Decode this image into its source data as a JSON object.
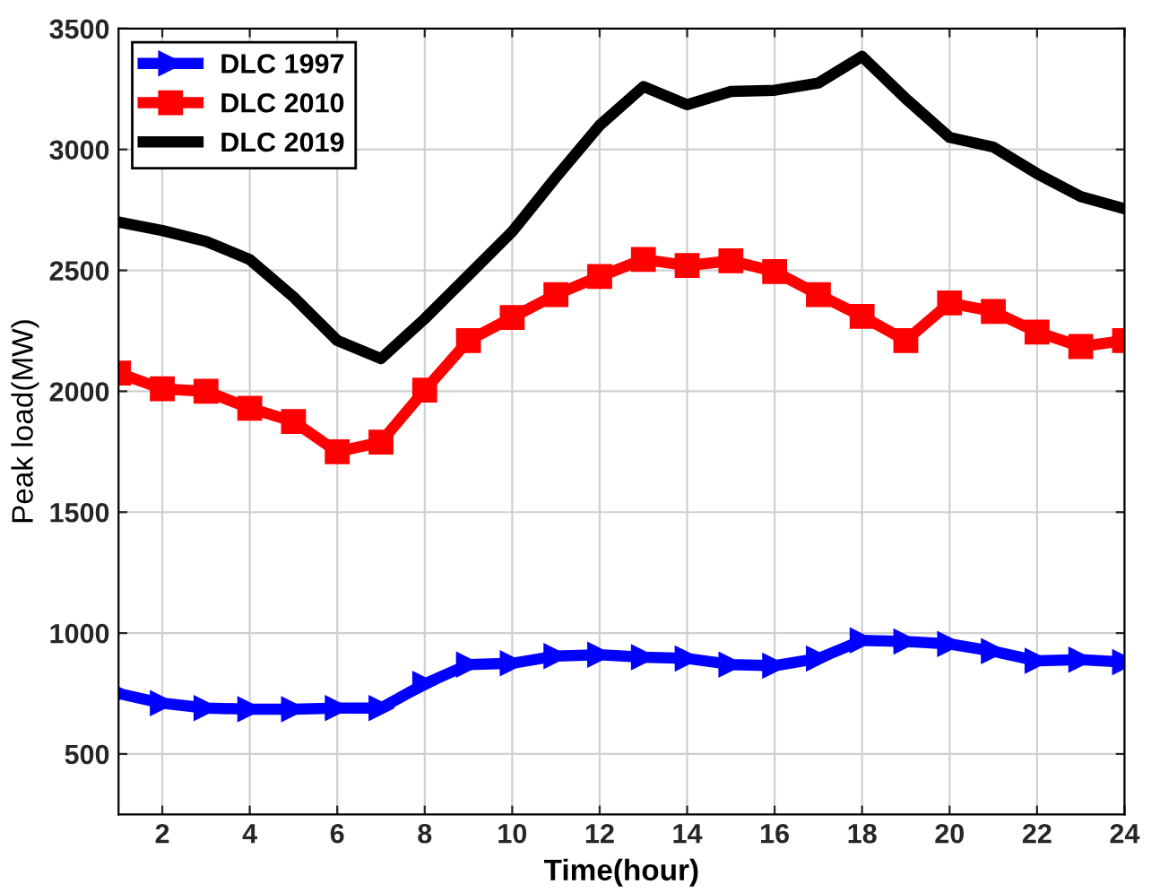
{
  "chart_data": {
    "type": "line",
    "xlabel": "Time(hour)",
    "ylabel": "Peak load(MW)",
    "x": [
      1,
      2,
      3,
      4,
      5,
      6,
      7,
      8,
      9,
      10,
      11,
      12,
      13,
      14,
      15,
      16,
      17,
      18,
      19,
      20,
      21,
      22,
      23,
      24
    ],
    "series": [
      {
        "name": "DLC 1997",
        "color": "#0000ff",
        "marker": "triangle",
        "values": [
          750,
          710,
          690,
          685,
          685,
          690,
          690,
          790,
          870,
          875,
          905,
          910,
          900,
          895,
          870,
          865,
          895,
          970,
          965,
          955,
          925,
          885,
          890,
          880
        ]
      },
      {
        "name": "DLC 2010",
        "color": "#ff0000",
        "marker": "square",
        "values": [
          2075,
          2010,
          2000,
          1930,
          1875,
          1750,
          1790,
          2005,
          2210,
          2305,
          2400,
          2475,
          2545,
          2520,
          2540,
          2495,
          2400,
          2310,
          2210,
          2365,
          2330,
          2245,
          2185,
          2210
        ]
      },
      {
        "name": "DLC 2019",
        "color": "#000000",
        "marker": "none",
        "values": [
          2700,
          2665,
          2620,
          2545,
          2390,
          2210,
          2135,
          2300,
          2480,
          2660,
          2885,
          3100,
          3260,
          3185,
          3240,
          3245,
          3275,
          3385,
          3210,
          3050,
          3010,
          2900,
          2805,
          2755
        ]
      }
    ],
    "xlim": [
      1,
      24
    ],
    "xticks": [
      2,
      4,
      6,
      8,
      10,
      12,
      14,
      16,
      18,
      20,
      22,
      24
    ],
    "ylim": [
      250,
      3500
    ],
    "yticks": [
      500,
      1000,
      1500,
      2000,
      2500,
      3000,
      3500
    ],
    "grid": true,
    "legend": "top left",
    "line_style": "solid"
  }
}
